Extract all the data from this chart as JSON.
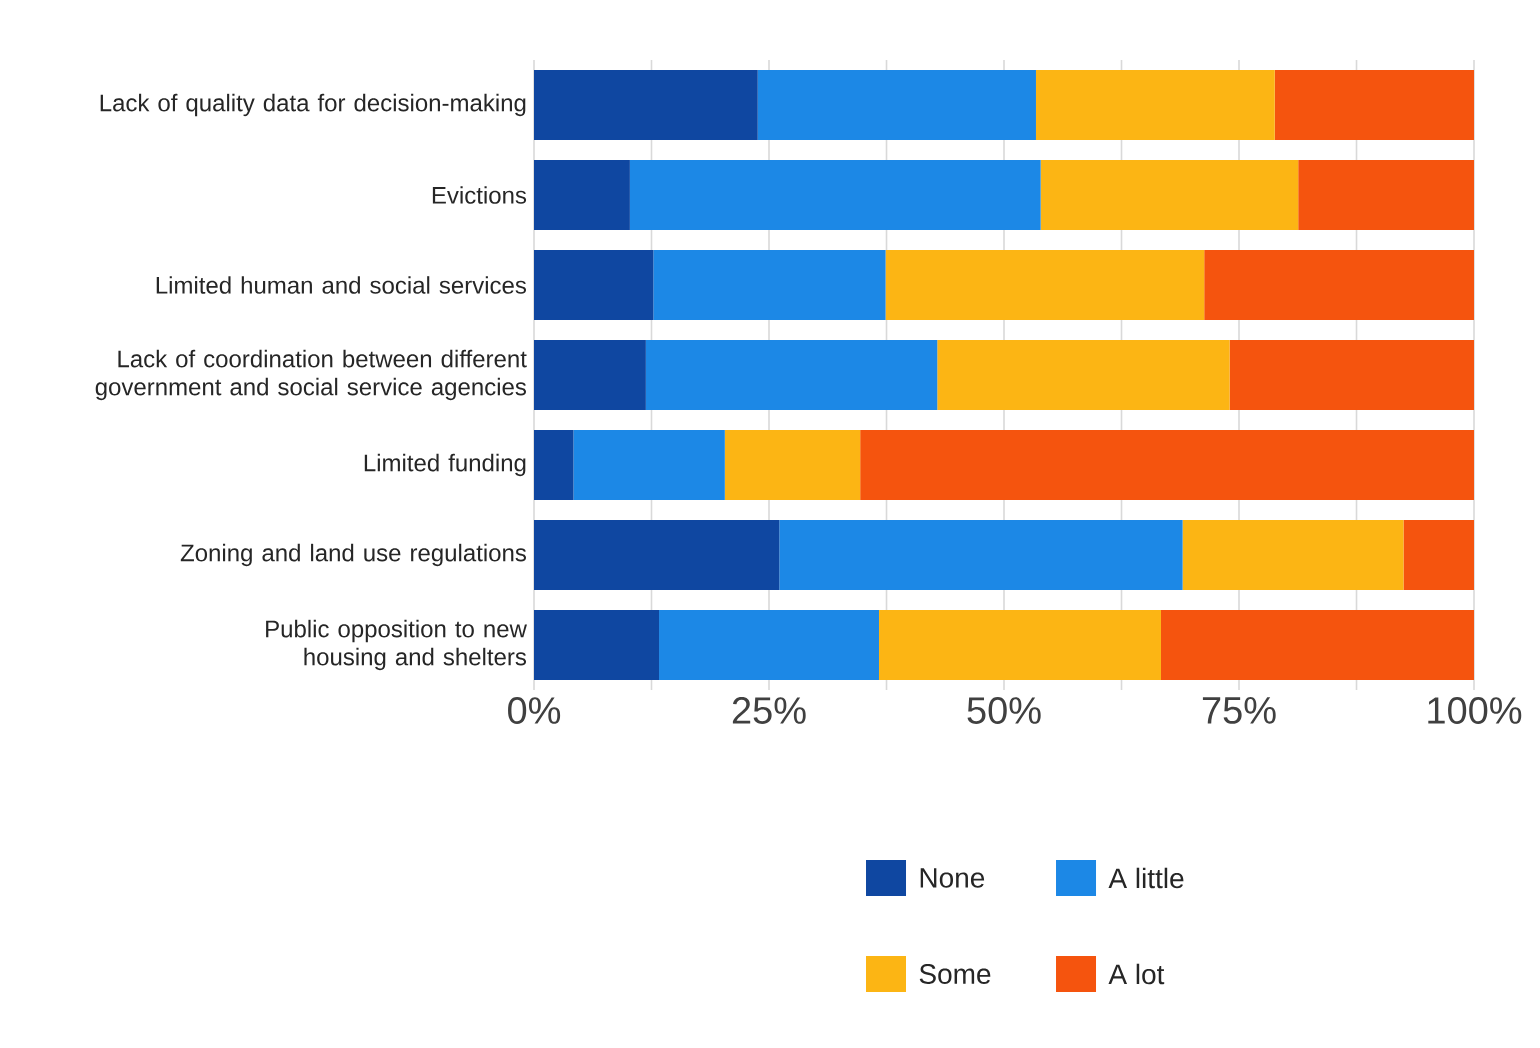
{
  "chart_data": {
    "type": "bar",
    "orientation": "horizontal",
    "stacked": true,
    "categories": [
      "Lack of quality data for decision-making",
      "Evictions",
      "Limited human and social services",
      "Lack of coordination between different government and social service agencies",
      "Limited funding",
      "Zoning and land use regulations",
      "Public opposition to new housing and shelters"
    ],
    "series": [
      {
        "name": "None",
        "color": "#0f47a1",
        "values": [
          23.8,
          10.2,
          12.7,
          11.9,
          4.2,
          26.1,
          13.3
        ]
      },
      {
        "name": "A little",
        "color": "#1c88e6",
        "values": [
          29.6,
          43.7,
          24.7,
          31.0,
          16.1,
          42.9,
          23.4
        ]
      },
      {
        "name": "Some",
        "color": "#fcb514",
        "values": [
          25.4,
          27.4,
          33.9,
          31.1,
          14.4,
          23.5,
          30.0
        ]
      },
      {
        "name": "A lot",
        "color": "#f5540e",
        "values": [
          21.2,
          18.7,
          28.7,
          26.0,
          65.3,
          7.5,
          33.3
        ]
      }
    ],
    "xlim": [
      0,
      100
    ],
    "xticks": [
      {
        "value": 0,
        "label": "0%"
      },
      {
        "value": 12.5,
        "label": null
      },
      {
        "value": 25,
        "label": "25%"
      },
      {
        "value": 37.5,
        "label": null
      },
      {
        "value": 50,
        "label": "50%"
      },
      {
        "value": 62.5,
        "label": null
      },
      {
        "value": 75,
        "label": "75%"
      },
      {
        "value": 87.5,
        "label": null
      },
      {
        "value": 100,
        "label": "100%"
      }
    ],
    "grid": "x",
    "legend": "bottom"
  }
}
